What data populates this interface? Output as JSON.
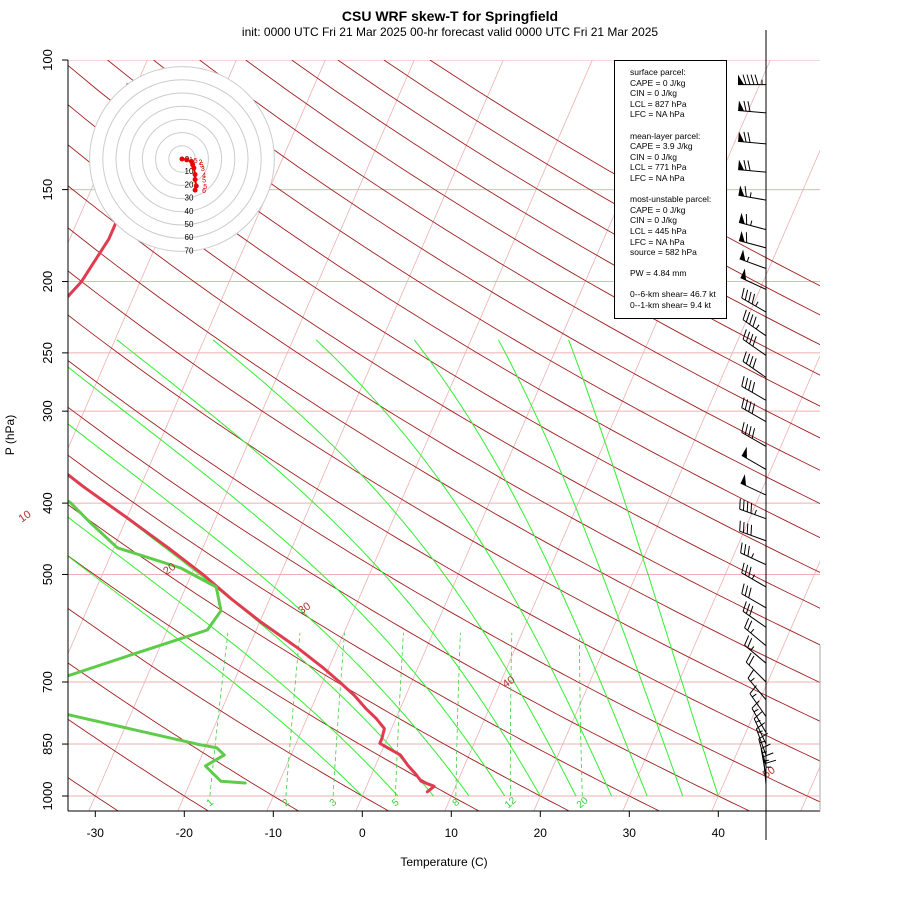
{
  "chart_data": {
    "type": "skew-t log-p diagram",
    "title": "CSU WRF skew-T for Springfield",
    "subtitle": "init: 0000 UTC Fri 21 Mar 2025    00-hr forecast valid 0000 UTC Fri 21 Mar 2025",
    "xlabel": "Temperature (C)",
    "ylabel": "P (hPa)",
    "x_ticks": [
      -30,
      -20,
      -10,
      0,
      10,
      20,
      30,
      40
    ],
    "p_ticks": [
      100,
      150,
      200,
      250,
      300,
      400,
      500,
      700,
      850,
      1000
    ],
    "p_gridlines": [
      100,
      150,
      200,
      250,
      300,
      400,
      500,
      700,
      850,
      1000
    ],
    "xlim_at_1000hPa": [
      -33,
      52
    ],
    "ylim_hPa": [
      1050,
      100
    ],
    "isotherms": [
      -100,
      -90,
      -80,
      -70,
      -60,
      -50,
      -40,
      -30,
      -20,
      -10,
      0,
      10,
      20,
      30,
      40,
      50
    ],
    "dry_adiabat_labels": [
      {
        "text": "-10",
        "p": 242
      },
      {
        "text": "0",
        "p": 350
      },
      {
        "text": "10",
        "p": 420
      },
      {
        "text": "20",
        "p": 495
      },
      {
        "text": "30",
        "p": 560
      },
      {
        "text": "40",
        "p": 705
      },
      {
        "text": "50",
        "p": 935
      }
    ],
    "moist_adiabat_starts_1000hPa": [
      0,
      4,
      8,
      12,
      16,
      20,
      24,
      28,
      32,
      36,
      40
    ],
    "mixing_ratio_labels": [
      "1",
      "2",
      "3",
      "5",
      "8",
      "12",
      "20"
    ],
    "mixing_ratio_values_gkg": [
      1,
      2,
      3,
      5,
      8,
      12,
      20
    ],
    "series": [
      {
        "name": "Temperature",
        "color": "#e03c50",
        "points": [
          {
            "p": 987,
            "t": 7.1
          },
          {
            "p": 970,
            "t": 7.6
          },
          {
            "p": 955,
            "t": 5.9
          },
          {
            "p": 935,
            "t": 5.0
          },
          {
            "p": 910,
            "t": 3.7
          },
          {
            "p": 880,
            "t": 2.3
          },
          {
            "p": 860,
            "t": 0.5
          },
          {
            "p": 848,
            "t": -0.6
          },
          {
            "p": 835,
            "t": -0.6
          },
          {
            "p": 810,
            "t": -0.8
          },
          {
            "p": 785,
            "t": -2.2
          },
          {
            "p": 760,
            "t": -3.9
          },
          {
            "p": 730,
            "t": -5.8
          },
          {
            "p": 700,
            "t": -8.1
          },
          {
            "p": 670,
            "t": -10.6
          },
          {
            "p": 630,
            "t": -14.4
          },
          {
            "p": 580,
            "t": -19.9
          },
          {
            "p": 540,
            "t": -24.3
          },
          {
            "p": 500,
            "t": -28.7
          },
          {
            "p": 460,
            "t": -33.9
          },
          {
            "p": 420,
            "t": -39.8
          },
          {
            "p": 380,
            "t": -46.4
          },
          {
            "p": 350,
            "t": -51.5
          },
          {
            "p": 320,
            "t": -56.4
          },
          {
            "p": 290,
            "t": -60.1
          },
          {
            "p": 270,
            "t": -62.2
          },
          {
            "p": 250,
            "t": -61.5
          },
          {
            "p": 230,
            "t": -59.0
          },
          {
            "p": 200,
            "t": -56.6
          },
          {
            "p": 175,
            "t": -55.6
          },
          {
            "p": 155,
            "t": -55.6
          },
          {
            "p": 135,
            "t": -57.5
          },
          {
            "p": 120,
            "t": -59.3
          },
          {
            "p": 108,
            "t": -61.0
          }
        ]
      },
      {
        "name": "Dewpoint",
        "color": "#5ecc4a",
        "points": [
          {
            "p": 960,
            "t": -13.8
          },
          {
            "p": 955,
            "t": -16.6
          },
          {
            "p": 910,
            "t": -19.1
          },
          {
            "p": 880,
            "t": -17.5
          },
          {
            "p": 860,
            "t": -18.7
          },
          {
            "p": 850,
            "t": -21.1
          },
          {
            "p": 775,
            "t": -37.1
          },
          {
            "p": 730,
            "t": -42.8
          },
          {
            "p": 700,
            "t": -40.7
          },
          {
            "p": 640,
            "t": -32.4
          },
          {
            "p": 595,
            "t": -25.5
          },
          {
            "p": 560,
            "t": -24.9
          },
          {
            "p": 520,
            "t": -26.6
          },
          {
            "p": 490,
            "t": -31.5
          },
          {
            "p": 460,
            "t": -39.6
          },
          {
            "p": 425,
            "t": -43.9
          },
          {
            "p": 400,
            "t": -47.0
          },
          {
            "p": 350,
            "t": -55.7
          },
          {
            "p": 310,
            "t": -63.6
          },
          {
            "p": 290,
            "t": -67.0
          },
          {
            "p": 265,
            "t": -69.2
          },
          {
            "p": 230,
            "t": -71.8
          },
          {
            "p": 200,
            "t": -73.3
          },
          {
            "p": 180,
            "t": -73.5
          }
        ]
      }
    ],
    "wind_barbs": [
      {
        "p": 108,
        "wdir": 270,
        "wspd": 95
      },
      {
        "p": 118,
        "wdir": 275,
        "wspd": 70
      },
      {
        "p": 130,
        "wdir": 275,
        "wspd": 70
      },
      {
        "p": 142,
        "wdir": 275,
        "wspd": 70
      },
      {
        "p": 155,
        "wdir": 280,
        "wspd": 65
      },
      {
        "p": 170,
        "wdir": 285,
        "wspd": 65
      },
      {
        "p": 180,
        "wdir": 285,
        "wspd": 60
      },
      {
        "p": 192,
        "wdir": 290,
        "wspd": 55
      },
      {
        "p": 205,
        "wdir": 295,
        "wspd": 50
      },
      {
        "p": 220,
        "wdir": 300,
        "wspd": 45
      },
      {
        "p": 237,
        "wdir": 305,
        "wspd": 45
      },
      {
        "p": 252,
        "wdir": 305,
        "wspd": 40
      },
      {
        "p": 270,
        "wdir": 305,
        "wspd": 40
      },
      {
        "p": 290,
        "wdir": 300,
        "wspd": 40
      },
      {
        "p": 310,
        "wdir": 300,
        "wspd": 40
      },
      {
        "p": 335,
        "wdir": 300,
        "wspd": 40
      },
      {
        "p": 360,
        "wdir": 300,
        "wspd": 50
      },
      {
        "p": 390,
        "wdir": 295,
        "wspd": 50
      },
      {
        "p": 420,
        "wdir": 290,
        "wspd": 45
      },
      {
        "p": 450,
        "wdir": 290,
        "wspd": 40
      },
      {
        "p": 485,
        "wdir": 295,
        "wspd": 35
      },
      {
        "p": 520,
        "wdir": 300,
        "wspd": 35
      },
      {
        "p": 555,
        "wdir": 300,
        "wspd": 30
      },
      {
        "p": 590,
        "wdir": 305,
        "wspd": 30
      },
      {
        "p": 625,
        "wdir": 310,
        "wspd": 25
      },
      {
        "p": 660,
        "wdir": 310,
        "wspd": 25
      },
      {
        "p": 700,
        "wdir": 315,
        "wspd": 20
      },
      {
        "p": 740,
        "wdir": 320,
        "wspd": 15
      },
      {
        "p": 780,
        "wdir": 325,
        "wspd": 15
      },
      {
        "p": 820,
        "wdir": 330,
        "wspd": 15
      },
      {
        "p": 850,
        "wdir": 335,
        "wspd": 15
      },
      {
        "p": 880,
        "wdir": 340,
        "wspd": 15
      },
      {
        "p": 910,
        "wdir": 345,
        "wspd": 15
      },
      {
        "p": 940,
        "wdir": 350,
        "wspd": 15
      },
      {
        "p": 965,
        "wdir": 355,
        "wspd": 15
      },
      {
        "p": 985,
        "wdir": 0,
        "wspd": 15
      }
    ],
    "hodograph": {
      "rings_kt": [
        10,
        20,
        30,
        40,
        50,
        60,
        70
      ],
      "ring_labels": [
        "10",
        "20",
        "30",
        "40",
        "50",
        "60",
        "70"
      ],
      "center_label": "0",
      "points_kt": [
        {
          "u": 0,
          "v": 0,
          "label": "1"
        },
        {
          "u": 4,
          "v": -1,
          "label": "5"
        },
        {
          "u": 8,
          "v": -3,
          "label": "2"
        },
        {
          "u": 9,
          "v": -7,
          "label": "5"
        },
        {
          "u": 10,
          "v": -11,
          "label": "3"
        },
        {
          "u": 11,
          "v": -19,
          "label": "4"
        },
        {
          "u": 11,
          "v": -25,
          "label": "5"
        },
        {
          "u": 12,
          "v": -33,
          "label": "5"
        },
        {
          "u": 11,
          "v": -38,
          "label": "6"
        }
      ]
    }
  },
  "legend": {
    "surface": [
      "surface parcel:",
      "CAPE = 0 J/kg",
      "CIN = 0 J/kg",
      "LCL = 827 hPa",
      "LFC = NA hPa"
    ],
    "mean_layer": [
      "mean-layer parcel:",
      "CAPE = 3.9 J/kg",
      "CIN = 0 J/kg",
      "LCL = 771 hPa",
      "LFC = NA hPa"
    ],
    "most_unstable": [
      "most-unstable parcel:",
      "CAPE = 0 J/kg",
      "CIN = 0 J/kg",
      "LCL = 445 hPa",
      "LFC = NA hPa",
      "source = 582 hPa"
    ],
    "pw": "PW =  4.84 mm",
    "shear": [
      "0--6-km shear= 46.7 kt",
      "0--1-km shear= 9.4 kt"
    ]
  },
  "colors": {
    "isotherm": "#eeb0b0",
    "dry_adiabat": "#a02020",
    "moist_adiabat": "#22dd22",
    "mixing_ratio": "#44cc44",
    "temperature": "#e03c50",
    "dewpoint": "#5ecc4a",
    "hodograph_ring": "#cccccc",
    "hodograph_line": "#ee0000"
  }
}
